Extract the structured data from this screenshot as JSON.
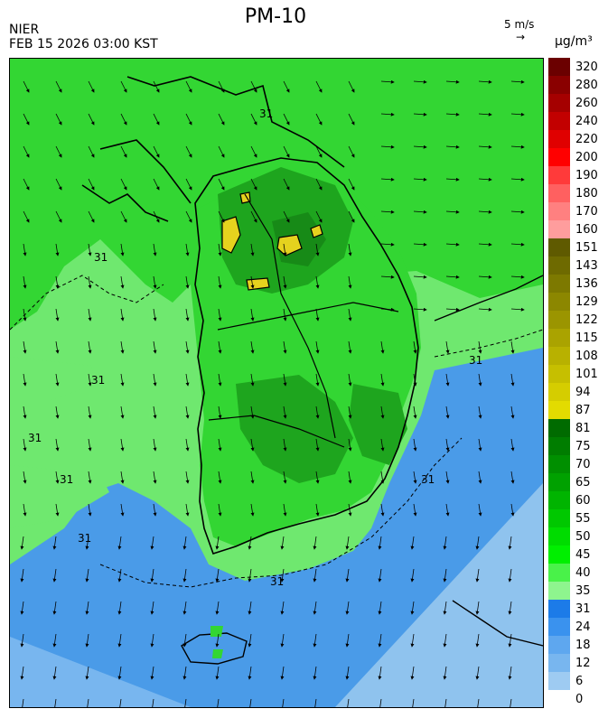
{
  "header": {
    "title": "PM-10",
    "agency": "NIER",
    "timestamp": "FEB 15 2026 03:00 KST",
    "wind_reference": "5 m/s",
    "unit": "μg/m³"
  },
  "colors": {
    "sea_low": "#4a9be8",
    "sea_very_low": "#8fc3ee",
    "land_mid": "#33d633",
    "land_high": "#1ea51e",
    "land_very_high": "#178a17",
    "hotspot": "#e5d21e",
    "border": "#000000"
  },
  "legend": {
    "labels": [
      "320",
      "280",
      "260",
      "240",
      "220",
      "200",
      "190",
      "180",
      "170",
      "160",
      "151",
      "143",
      "136",
      "129",
      "122",
      "115",
      "108",
      "101",
      "94",
      "87",
      "81",
      "75",
      "70",
      "65",
      "60",
      "55",
      "50",
      "45",
      "40",
      "35",
      "31",
      "24",
      "18",
      "12",
      "6",
      "0"
    ],
    "band_colors": [
      "#6b0000",
      "#8a0000",
      "#a50000",
      "#c20000",
      "#e00000",
      "#ff0000",
      "#ff3a3a",
      "#ff6060",
      "#ff8080",
      "#ff9d9d",
      "#5f5a00",
      "#6e6a00",
      "#7d7900",
      "#8c8700",
      "#9b9500",
      "#aaa300",
      "#b8b100",
      "#c6bf00",
      "#d5cd00",
      "#e3db00",
      "#006b00",
      "#007d00",
      "#008f00",
      "#00a100",
      "#00b400",
      "#00c800",
      "#00dc00",
      "#00ef00",
      "#49f249",
      "#8ef58e",
      "#1c7be8",
      "#3a92ee",
      "#5ea7ef",
      "#78b6ef",
      "#9ecbf2"
    ]
  },
  "contour_label": "31"
}
